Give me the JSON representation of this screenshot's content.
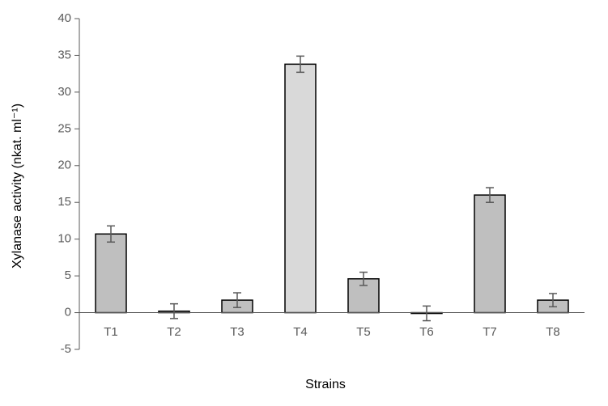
{
  "chart_data": {
    "type": "bar",
    "x_label": "Strains",
    "y_label": "Xylanase activity (nkat. ml⁻¹)",
    "categories": [
      "T1",
      "T2",
      "T3",
      "T4",
      "T5",
      "T6",
      "T7",
      "T8"
    ],
    "values": [
      10.7,
      0.2,
      1.7,
      33.8,
      4.6,
      -0.1,
      16,
      1.7
    ],
    "errors": [
      1.1,
      1,
      1,
      1.1,
      0.9,
      1,
      1,
      0.9
    ],
    "colors": [
      "#bfbfbf",
      "#bfbfbf",
      "#bfbfbf",
      "#d9d9d9",
      "#bfbfbf",
      "#bfbfbf",
      "#bfbfbf",
      "#bfbfbf"
    ],
    "ylim": [
      -5,
      40
    ],
    "yticks": [
      -5,
      0,
      5,
      10,
      15,
      20,
      25,
      30,
      35,
      40
    ],
    "grid": false
  }
}
